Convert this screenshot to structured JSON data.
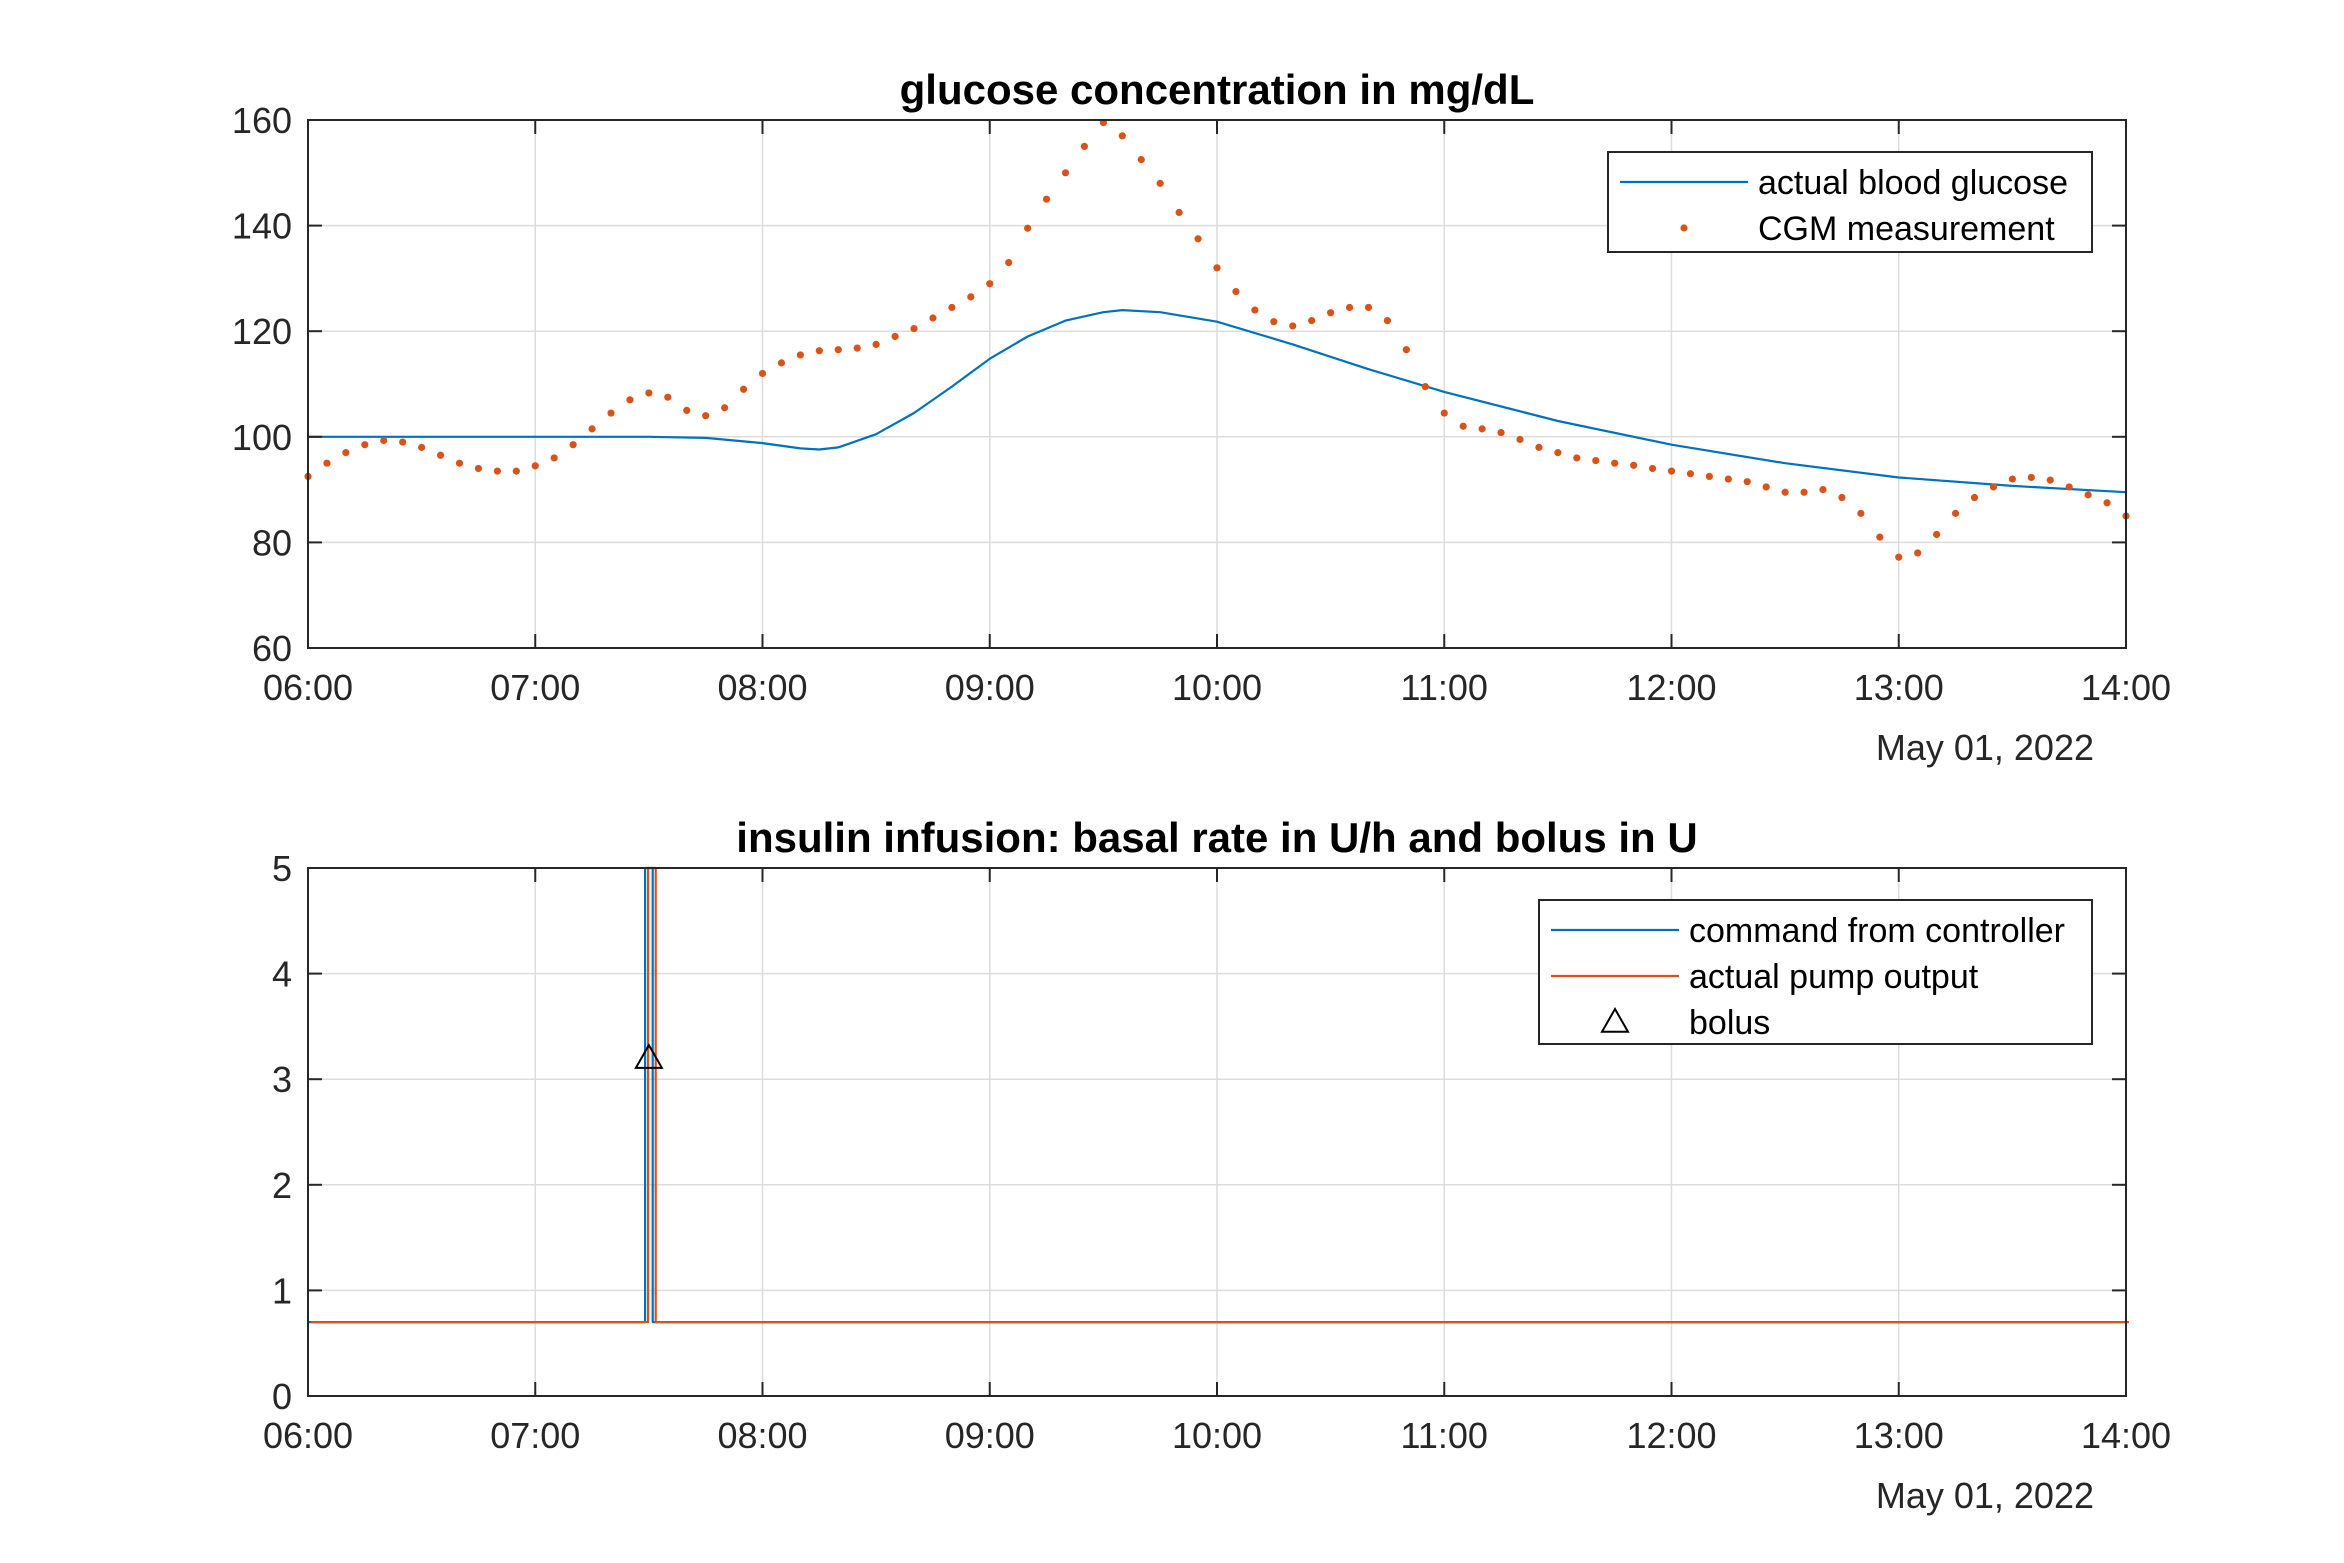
{
  "chart_data": [
    {
      "type": "line",
      "title": "glucose concentration in mg/dL",
      "x_ticks": [
        "06:00",
        "07:00",
        "08:00",
        "09:00",
        "10:00",
        "11:00",
        "12:00",
        "13:00",
        "14:00"
      ],
      "x_range": [
        "06:00",
        "14:00"
      ],
      "date_label": "May 01, 2022",
      "y_ticks": [
        "60",
        "80",
        "100",
        "120",
        "140",
        "160"
      ],
      "ylim": [
        60,
        160
      ],
      "grid": true,
      "legend_position": "top-right",
      "series": [
        {
          "name": "actual blood glucose",
          "style": "line",
          "color": "#0072BD",
          "points": [
            [
              "06:00",
              100.0
            ],
            [
              "06:30",
              100.0
            ],
            [
              "07:00",
              100.0
            ],
            [
              "07:30",
              100.0
            ],
            [
              "07:45",
              99.8
            ],
            [
              "08:00",
              98.8
            ],
            [
              "08:10",
              97.8
            ],
            [
              "08:15",
              97.6
            ],
            [
              "08:20",
              98.0
            ],
            [
              "08:30",
              100.5
            ],
            [
              "08:40",
              104.5
            ],
            [
              "08:50",
              109.5
            ],
            [
              "09:00",
              114.8
            ],
            [
              "09:10",
              119.0
            ],
            [
              "09:20",
              122.0
            ],
            [
              "09:30",
              123.6
            ],
            [
              "09:35",
              124.0
            ],
            [
              "09:45",
              123.6
            ],
            [
              "10:00",
              121.8
            ],
            [
              "10:20",
              117.5
            ],
            [
              "10:40",
              112.8
            ],
            [
              "11:00",
              108.5
            ],
            [
              "11:30",
              103.0
            ],
            [
              "12:00",
              98.5
            ],
            [
              "12:30",
              95.0
            ],
            [
              "13:00",
              92.3
            ],
            [
              "13:30",
              90.7
            ],
            [
              "14:00",
              89.5
            ]
          ]
        },
        {
          "name": "CGM measurement",
          "style": "dots",
          "color": "#D95319",
          "points": [
            [
              "06:00",
              92.5
            ],
            [
              "06:05",
              95.0
            ],
            [
              "06:10",
              97.0
            ],
            [
              "06:15",
              98.5
            ],
            [
              "06:20",
              99.3
            ],
            [
              "06:25",
              99.0
            ],
            [
              "06:30",
              98.0
            ],
            [
              "06:35",
              96.5
            ],
            [
              "06:40",
              95.0
            ],
            [
              "06:45",
              94.0
            ],
            [
              "06:50",
              93.5
            ],
            [
              "06:55",
              93.5
            ],
            [
              "07:00",
              94.5
            ],
            [
              "07:05",
              96.0
            ],
            [
              "07:10",
              98.5
            ],
            [
              "07:15",
              101.5
            ],
            [
              "07:20",
              104.5
            ],
            [
              "07:25",
              107.0
            ],
            [
              "07:30",
              108.3
            ],
            [
              "07:35",
              107.5
            ],
            [
              "07:40",
              105.0
            ],
            [
              "07:45",
              104.0
            ],
            [
              "07:50",
              105.5
            ],
            [
              "07:55",
              109.0
            ],
            [
              "08:00",
              112.0
            ],
            [
              "08:05",
              114.0
            ],
            [
              "08:10",
              115.5
            ],
            [
              "08:15",
              116.3
            ],
            [
              "08:20",
              116.5
            ],
            [
              "08:25",
              116.8
            ],
            [
              "08:30",
              117.5
            ],
            [
              "08:35",
              119.0
            ],
            [
              "08:40",
              120.5
            ],
            [
              "08:45",
              122.5
            ],
            [
              "08:50",
              124.5
            ],
            [
              "08:55",
              126.5
            ],
            [
              "09:00",
              129.0
            ],
            [
              "09:05",
              133.0
            ],
            [
              "09:10",
              139.5
            ],
            [
              "09:15",
              145.0
            ],
            [
              "09:20",
              150.0
            ],
            [
              "09:25",
              155.0
            ],
            [
              "09:30",
              159.5
            ],
            [
              "09:35",
              157.0
            ],
            [
              "09:40",
              152.5
            ],
            [
              "09:45",
              148.0
            ],
            [
              "09:50",
              142.5
            ],
            [
              "09:55",
              137.5
            ],
            [
              "10:00",
              132.0
            ],
            [
              "10:05",
              127.5
            ],
            [
              "10:10",
              124.0
            ],
            [
              "10:15",
              121.8
            ],
            [
              "10:20",
              121.0
            ],
            [
              "10:25",
              122.0
            ],
            [
              "10:30",
              123.5
            ],
            [
              "10:35",
              124.5
            ],
            [
              "10:40",
              124.5
            ],
            [
              "10:45",
              122.0
            ],
            [
              "10:50",
              116.5
            ],
            [
              "10:55",
              109.5
            ],
            [
              "11:00",
              104.5
            ],
            [
              "11:05",
              102.0
            ],
            [
              "11:10",
              101.5
            ],
            [
              "11:15",
              100.8
            ],
            [
              "11:20",
              99.5
            ],
            [
              "11:25",
              98.0
            ],
            [
              "11:30",
              97.0
            ],
            [
              "11:35",
              96.0
            ],
            [
              "11:40",
              95.5
            ],
            [
              "11:45",
              95.0
            ],
            [
              "11:50",
              94.6
            ],
            [
              "11:55",
              94.0
            ],
            [
              "12:00",
              93.5
            ],
            [
              "12:05",
              93.0
            ],
            [
              "12:10",
              92.5
            ],
            [
              "12:15",
              92.0
            ],
            [
              "12:20",
              91.5
            ],
            [
              "12:25",
              90.5
            ],
            [
              "12:30",
              89.5
            ],
            [
              "12:35",
              89.5
            ],
            [
              "12:40",
              90.0
            ],
            [
              "12:45",
              88.5
            ],
            [
              "12:50",
              85.5
            ],
            [
              "12:55",
              81.0
            ],
            [
              "13:00",
              77.2
            ],
            [
              "13:05",
              78.0
            ],
            [
              "13:10",
              81.5
            ],
            [
              "13:15",
              85.5
            ],
            [
              "13:20",
              88.5
            ],
            [
              "13:25",
              90.5
            ],
            [
              "13:30",
              92.0
            ],
            [
              "13:35",
              92.3
            ],
            [
              "13:40",
              91.8
            ],
            [
              "13:45",
              90.5
            ],
            [
              "13:50",
              89.0
            ],
            [
              "13:55",
              87.5
            ],
            [
              "14:00",
              85.0
            ]
          ]
        }
      ]
    },
    {
      "type": "line",
      "title": "insulin infusion: basal rate in U/h and bolus in U",
      "x_ticks": [
        "06:00",
        "07:00",
        "08:00",
        "09:00",
        "10:00",
        "11:00",
        "12:00",
        "13:00",
        "14:00"
      ],
      "x_range": [
        "06:00",
        "14:00"
      ],
      "date_label": "May 01, 2022",
      "y_ticks": [
        "0",
        "1",
        "2",
        "3",
        "4",
        "5"
      ],
      "ylim": [
        0,
        5
      ],
      "grid": true,
      "legend_position": "top-right",
      "series": [
        {
          "name": "command from controller",
          "style": "line",
          "color": "#0072BD",
          "points": [
            [
              "06:00",
              0.7
            ],
            [
              "07:29",
              0.7
            ],
            [
              "07:29",
              5.0
            ],
            [
              "07:31",
              5.0
            ],
            [
              "07:31",
              0.7
            ],
            [
              "14:00",
              0.7
            ]
          ]
        },
        {
          "name": "actual pump output",
          "style": "line",
          "color": "#D95319",
          "points": [
            [
              "06:00",
              0.7
            ],
            [
              "07:29",
              0.7
            ],
            [
              "07:29",
              5.0
            ],
            [
              "07:31",
              5.0
            ],
            [
              "07:31",
              0.7
            ],
            [
              "14:00",
              0.7
            ]
          ]
        },
        {
          "name": "bolus",
          "style": "triangle-marker",
          "color": "#000000",
          "points": [
            [
              "07:30",
              3.2
            ]
          ]
        }
      ]
    }
  ]
}
